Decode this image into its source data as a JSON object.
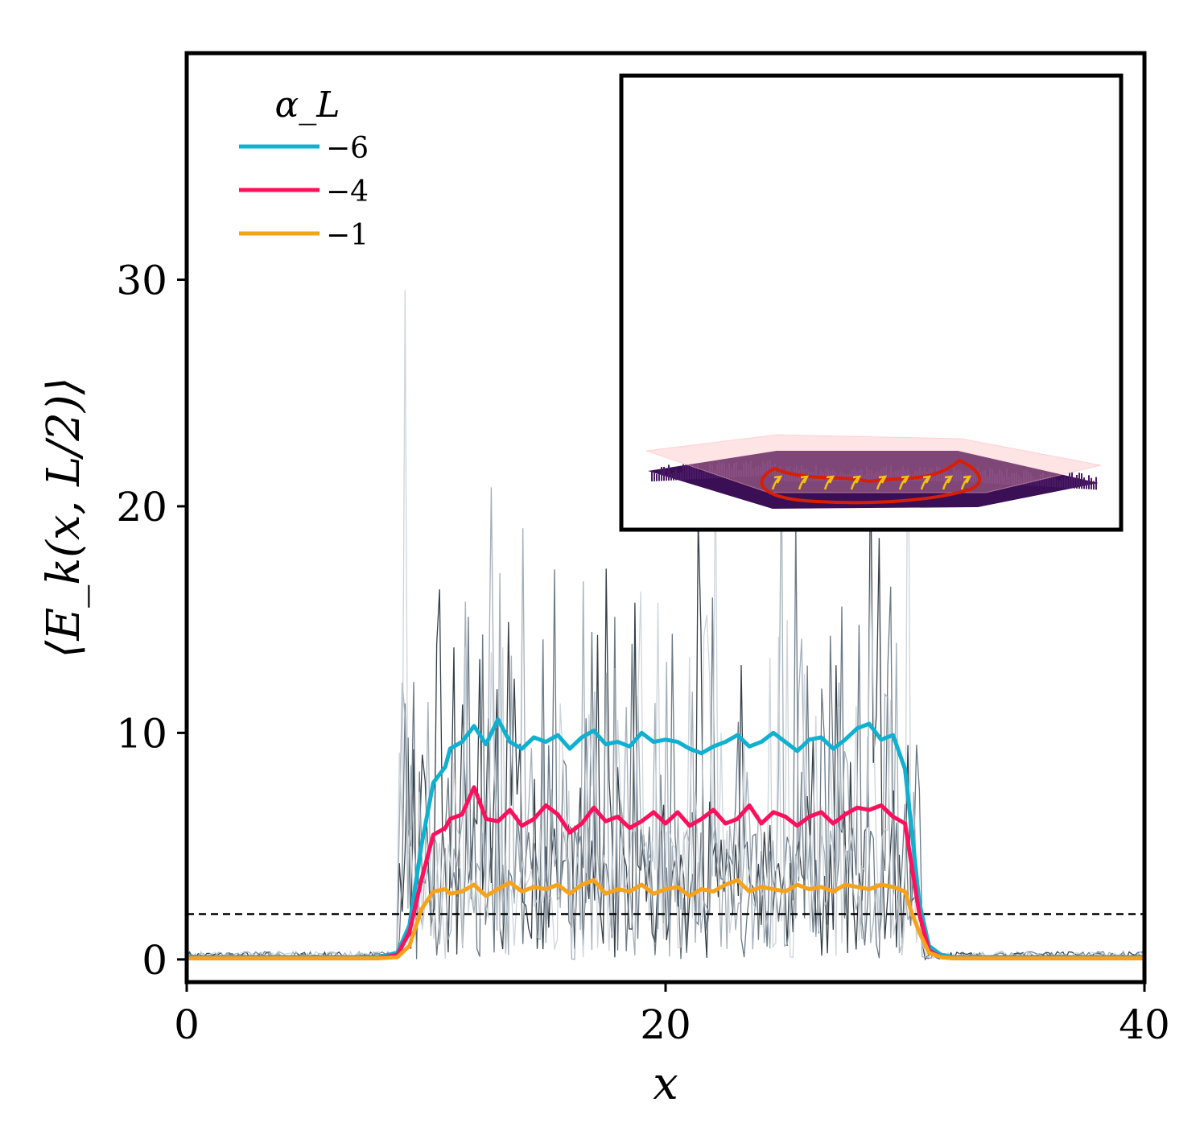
{
  "chart_data": {
    "type": "line",
    "xlabel": "x",
    "ylabel": "⟨E_k(x, L/2)⟩",
    "xlim": [
      0,
      40
    ],
    "ylim": [
      -1,
      40
    ],
    "x_ticks": [
      0,
      20,
      40
    ],
    "y_ticks": [
      0,
      10,
      20,
      30
    ],
    "threshold_line": {
      "y": 2,
      "style": "dashed",
      "color": "#000000"
    },
    "legend": {
      "title": "α_L",
      "placement": "top-left"
    },
    "series": [
      {
        "name": "−6",
        "color": "#0fb0d0",
        "x": [
          0,
          4,
          8,
          8.8,
          9.3,
          9.8,
          10.3,
          10.8,
          11,
          11.5,
          12,
          12.5,
          13,
          13.5,
          14,
          14.5,
          15,
          15.5,
          16,
          16.5,
          17,
          17.5,
          18,
          18.5,
          19,
          19.5,
          20,
          20.5,
          21,
          21.5,
          22,
          22.5,
          23,
          23.5,
          24,
          24.5,
          25,
          25.5,
          26,
          26.5,
          27,
          27.5,
          28,
          28.5,
          29,
          29.5,
          30,
          30.3,
          30.6,
          31,
          31.5,
          32,
          36,
          40
        ],
        "y": [
          0.1,
          0.1,
          0.1,
          0.3,
          1.5,
          5,
          7.8,
          8.5,
          9.3,
          9.6,
          10.3,
          9.5,
          10.6,
          9.6,
          9.3,
          9.8,
          9.6,
          9.9,
          9.3,
          9.8,
          10.1,
          9.5,
          9.6,
          9.4,
          10,
          9.6,
          9.7,
          9.6,
          9.3,
          9.1,
          9.4,
          9.6,
          9.9,
          9.4,
          9.6,
          10,
          9.6,
          9.2,
          9.7,
          9.8,
          9.3,
          9.7,
          10.2,
          10.4,
          9.7,
          9.9,
          8.4,
          5.5,
          2.5,
          0.6,
          0.2,
          0.1,
          0.1,
          0.1
        ]
      },
      {
        "name": "−4",
        "color": "#ff0f5c",
        "x": [
          0,
          4,
          8,
          8.8,
          9.3,
          9.8,
          10.3,
          10.8,
          11,
          11.5,
          12,
          12.5,
          13,
          13.5,
          14,
          14.5,
          15,
          15.5,
          16,
          16.5,
          17,
          17.5,
          18,
          18.5,
          19,
          19.5,
          20,
          20.5,
          21,
          21.5,
          22,
          22.5,
          23,
          23.5,
          24,
          24.5,
          25,
          25.5,
          26,
          26.5,
          27,
          27.5,
          28,
          28.5,
          29,
          29.5,
          30,
          30.3,
          30.6,
          31,
          31.5,
          32,
          36,
          40
        ],
        "y": [
          0.05,
          0.05,
          0.05,
          0.2,
          1.2,
          3.5,
          5.5,
          5.8,
          6.2,
          6.4,
          7.6,
          6.2,
          6.1,
          6.6,
          5.9,
          6.2,
          6.8,
          6.4,
          5.6,
          6.0,
          6.7,
          6.1,
          6.3,
          5.8,
          6.1,
          6.5,
          6.0,
          6.5,
          5.9,
          6.2,
          6.6,
          6.0,
          6.2,
          6.8,
          6.0,
          6.5,
          6.3,
          5.9,
          6.3,
          6.5,
          6.0,
          6.4,
          6.7,
          6.6,
          6.8,
          6.3,
          6.0,
          4.0,
          2.0,
          0.4,
          0.1,
          0.05,
          0.05,
          0.05
        ]
      },
      {
        "name": "−1",
        "color": "#f7a21b",
        "x": [
          0,
          4,
          8,
          8.8,
          9.3,
          9.8,
          10.3,
          10.8,
          11,
          11.5,
          12,
          12.5,
          13,
          13.5,
          14,
          14.5,
          15,
          15.5,
          16,
          16.5,
          17,
          17.5,
          18,
          18.5,
          19,
          19.5,
          20,
          20.5,
          21,
          21.5,
          22,
          22.5,
          23,
          23.5,
          24,
          24.5,
          25,
          25.5,
          26,
          26.5,
          27,
          27.5,
          28,
          28.5,
          29,
          29.5,
          30,
          30.3,
          30.6,
          31,
          31.5,
          32,
          36,
          40
        ],
        "y": [
          0.05,
          0.05,
          0.05,
          0.1,
          0.6,
          2.2,
          3.0,
          3.1,
          2.9,
          3.0,
          3.3,
          2.8,
          3.1,
          3.4,
          3.0,
          3.2,
          3.1,
          3.3,
          2.9,
          3.3,
          3.5,
          2.9,
          3.1,
          3.0,
          3.3,
          2.9,
          3.1,
          3.2,
          2.8,
          3.1,
          3.0,
          3.3,
          3.5,
          3.0,
          3.2,
          3.1,
          3.0,
          3.3,
          3.1,
          3.2,
          3.0,
          3.3,
          3.2,
          3.1,
          3.3,
          3.2,
          3.0,
          2.0,
          1.2,
          0.3,
          0.1,
          0.05,
          0.05,
          0.05
        ]
      }
    ],
    "background_traces_color": [
      "#1f2a33",
      "#5b6a78",
      "#9aa6b1",
      "#c9d0d6"
    ],
    "inset": {
      "description": "3D surface of E_k with red contour and yellow arrows"
    }
  },
  "colors": {
    "inset_surface_low": "#3b0f55",
    "inset_surface_mid": "#2a7a8c",
    "inset_surface_high": "#b8dd3c",
    "inset_plane": "#ffb3b8",
    "inset_contour": "#d81e05",
    "inset_arrows": "#f6c20a"
  }
}
